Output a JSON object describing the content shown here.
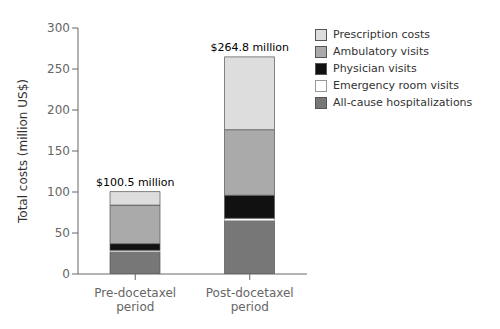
{
  "chart_data": {
    "type": "bar",
    "stacked": true,
    "categories": [
      "Pre-docetaxel\nperiod",
      "Post-docetaxel\nperiod"
    ],
    "series": [
      {
        "name": "All-cause hospitalizations",
        "color": "#777777",
        "values": [
          27,
          65
        ]
      },
      {
        "name": "Emergency room visits",
        "color": "#ffffff",
        "values": [
          2,
          3
        ]
      },
      {
        "name": "Physician visits",
        "color": "#111111",
        "values": [
          8,
          28
        ]
      },
      {
        "name": "Ambulatory visits",
        "color": "#aaaaaa",
        "values": [
          47,
          80
        ]
      },
      {
        "name": "Prescription costs",
        "color": "#dddddd",
        "values": [
          16.5,
          88.8
        ]
      }
    ],
    "ylabel": "Total costs (million US$)",
    "ylim": [
      0,
      300
    ],
    "yticks": [
      0,
      50,
      100,
      150,
      200,
      250,
      300
    ],
    "legend": "upper right",
    "grid": false,
    "totals": [
      100.5,
      264.8
    ],
    "total_labels": [
      "$100.5 million",
      "$264.8 million"
    ]
  }
}
